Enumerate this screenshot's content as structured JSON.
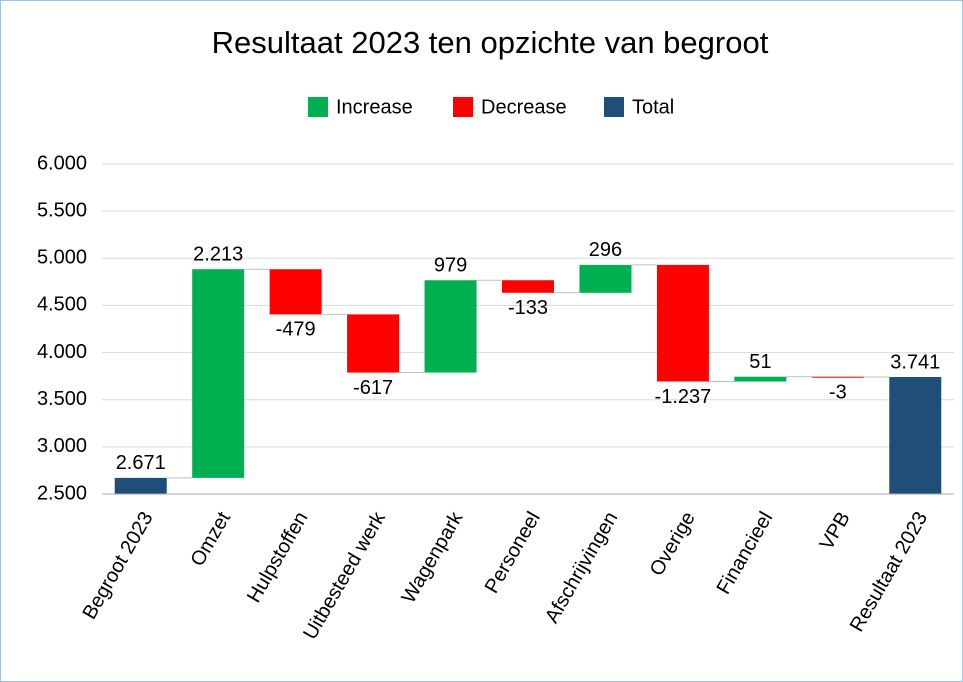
{
  "chart_data": {
    "type": "waterfall",
    "title": "Resultaat 2023 ten opzichte van begroot",
    "categories": [
      "Begroot 2023",
      "Omzet",
      "Hulpstoffen",
      "Uitbesteed werk",
      "Wagenpark",
      "Personeel",
      "Afschrijvingen",
      "Overige",
      "Financieel",
      "VPB",
      "Resultaat 2023"
    ],
    "values": [
      2671,
      2213,
      -479,
      -617,
      979,
      -133,
      296,
      -1237,
      51,
      -3,
      3741
    ],
    "value_labels": [
      "2.671",
      "2.213",
      "-479",
      "-617",
      "979",
      "-133",
      "296",
      "-1.237",
      "51",
      "-3",
      "3.741"
    ],
    "measure": [
      "total",
      "increase",
      "decrease",
      "decrease",
      "increase",
      "decrease",
      "increase",
      "decrease",
      "increase",
      "decrease",
      "total"
    ],
    "series": [
      {
        "name": "Increase",
        "color": "#00b050"
      },
      {
        "name": "Decrease",
        "color": "#ff0000"
      },
      {
        "name": "Total",
        "color": "#1f4e79"
      }
    ],
    "ylim": [
      2500,
      6000
    ],
    "yticks": [
      {
        "value": 2500,
        "label": "2.500"
      },
      {
        "value": 3000,
        "label": "3.000"
      },
      {
        "value": 3500,
        "label": "3.500"
      },
      {
        "value": 4000,
        "label": "4.000"
      },
      {
        "value": 4500,
        "label": "4.500"
      },
      {
        "value": 5000,
        "label": "5.000"
      },
      {
        "value": 5500,
        "label": "5.500"
      },
      {
        "value": 6000,
        "label": "6.000"
      }
    ],
    "grid": true,
    "legend": "top"
  }
}
